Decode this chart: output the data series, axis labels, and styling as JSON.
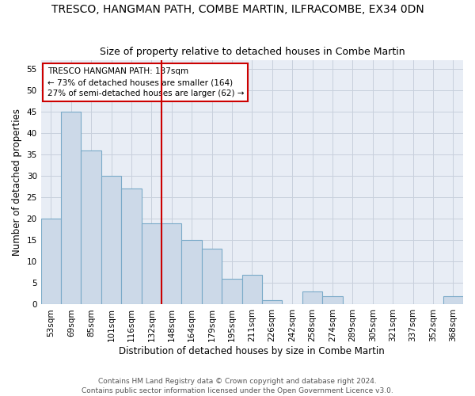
{
  "title": "TRESCO, HANGMAN PATH, COMBE MARTIN, ILFRACOMBE, EX34 0DN",
  "subtitle": "Size of property relative to detached houses in Combe Martin",
  "xlabel": "Distribution of detached houses by size in Combe Martin",
  "ylabel": "Number of detached properties",
  "categories": [
    "53sqm",
    "69sqm",
    "85sqm",
    "101sqm",
    "116sqm",
    "132sqm",
    "148sqm",
    "164sqm",
    "179sqm",
    "195sqm",
    "211sqm",
    "226sqm",
    "242sqm",
    "258sqm",
    "274sqm",
    "289sqm",
    "305sqm",
    "321sqm",
    "337sqm",
    "352sqm",
    "368sqm"
  ],
  "values": [
    20,
    45,
    36,
    30,
    27,
    19,
    19,
    15,
    13,
    6,
    7,
    1,
    0,
    3,
    2,
    0,
    0,
    0,
    0,
    0,
    2
  ],
  "bar_color": "#ccd9e8",
  "bar_edge_color": "#7aaac8",
  "vline_index": 6,
  "vline_color": "#cc0000",
  "annotation_text": "TRESCO HANGMAN PATH: 137sqm\n← 73% of detached houses are smaller (164)\n27% of semi-detached houses are larger (62) →",
  "annotation_box_color": "#cc0000",
  "ylim": [
    0,
    57
  ],
  "yticks": [
    0,
    5,
    10,
    15,
    20,
    25,
    30,
    35,
    40,
    45,
    50,
    55
  ],
  "grid_color": "#c8d0dc",
  "background_color": "#e8edf5",
  "footer": "Contains HM Land Registry data © Crown copyright and database right 2024.\nContains public sector information licensed under the Open Government Licence v3.0.",
  "title_fontsize": 10,
  "subtitle_fontsize": 9,
  "xlabel_fontsize": 8.5,
  "ylabel_fontsize": 8.5,
  "tick_fontsize": 7.5,
  "annotation_fontsize": 7.5,
  "footer_fontsize": 6.5
}
